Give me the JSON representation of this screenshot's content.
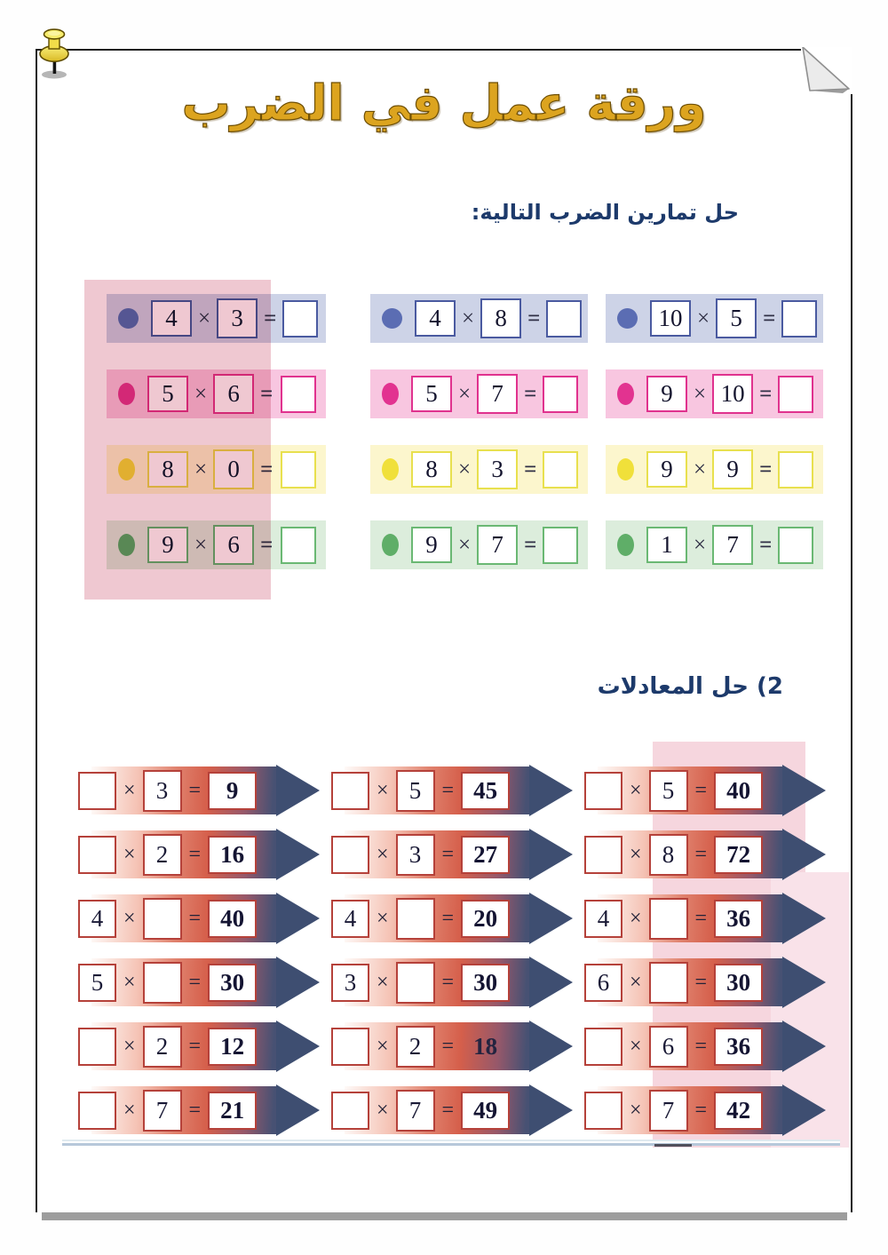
{
  "title": "ورقة عمل في الضرب",
  "title_color": "#dca41f",
  "heading_color": "#1d3a6b",
  "section1": {
    "heading": "حل تمارين الضرب التالية:",
    "times": "×",
    "equals": "=",
    "rows": [
      {
        "name": "blue",
        "band_color": "#cdd3e7",
        "bullet_color": "#5b6db3",
        "box_border": "#4a5aa0",
        "problems": [
          {
            "a": "4",
            "b": "3"
          },
          {
            "a": "4",
            "b": "8"
          },
          {
            "a": "10",
            "b": "5"
          }
        ]
      },
      {
        "name": "pink",
        "band_color": "#f8c6e0",
        "bullet_color": "#e23390",
        "box_border": "#e0328e",
        "problems": [
          {
            "a": "5",
            "b": "6"
          },
          {
            "a": "5",
            "b": "7"
          },
          {
            "a": "9",
            "b": "10"
          }
        ]
      },
      {
        "name": "yellow",
        "band_color": "#fcf6cd",
        "bullet_color": "#f0e03a",
        "box_border": "#e8e04e",
        "problems": [
          {
            "a": "8",
            "b": "0"
          },
          {
            "a": "8",
            "b": "3"
          },
          {
            "a": "9",
            "b": "9"
          }
        ]
      },
      {
        "name": "green",
        "band_color": "#dceddc",
        "bullet_color": "#5fae68",
        "box_border": "#6ab873",
        "problems": [
          {
            "a": "9",
            "b": "6"
          },
          {
            "a": "9",
            "b": "7"
          },
          {
            "a": "1",
            "b": "7"
          }
        ]
      }
    ]
  },
  "section2": {
    "heading": "2) حل المعادلات",
    "times": "×",
    "equals": "=",
    "arrow_body_red": "#d55f4b",
    "arrow_head_blue": "#3e4e71",
    "box_border": "#b5413a",
    "rows": [
      [
        {
          "a": "",
          "b": "3",
          "result": "9"
        },
        {
          "a": "",
          "b": "5",
          "result": "45"
        },
        {
          "a": "",
          "b": "5",
          "result": "40"
        }
      ],
      [
        {
          "a": "",
          "b": "2",
          "result": "16"
        },
        {
          "a": "",
          "b": "3",
          "result": "27"
        },
        {
          "a": "",
          "b": "8",
          "result": "72"
        }
      ],
      [
        {
          "a": "4",
          "b": "",
          "result": "40"
        },
        {
          "a": "4",
          "b": "",
          "result": "20"
        },
        {
          "a": "4",
          "b": "",
          "result": "36"
        }
      ],
      [
        {
          "a": "5",
          "b": "",
          "result": "30"
        },
        {
          "a": "3",
          "b": "",
          "result": "30"
        },
        {
          "a": "6",
          "b": "",
          "result": "30"
        }
      ],
      [
        {
          "a": "",
          "b": "2",
          "result": "12"
        },
        {
          "a": "",
          "b": "2",
          "result": "18",
          "result_boxed": false
        },
        {
          "a": "",
          "b": "6",
          "result": "36"
        }
      ],
      [
        {
          "a": "",
          "b": "7",
          "result": "21"
        },
        {
          "a": "",
          "b": "7",
          "result": "49"
        },
        {
          "a": "",
          "b": "7",
          "result": "42"
        }
      ]
    ]
  }
}
